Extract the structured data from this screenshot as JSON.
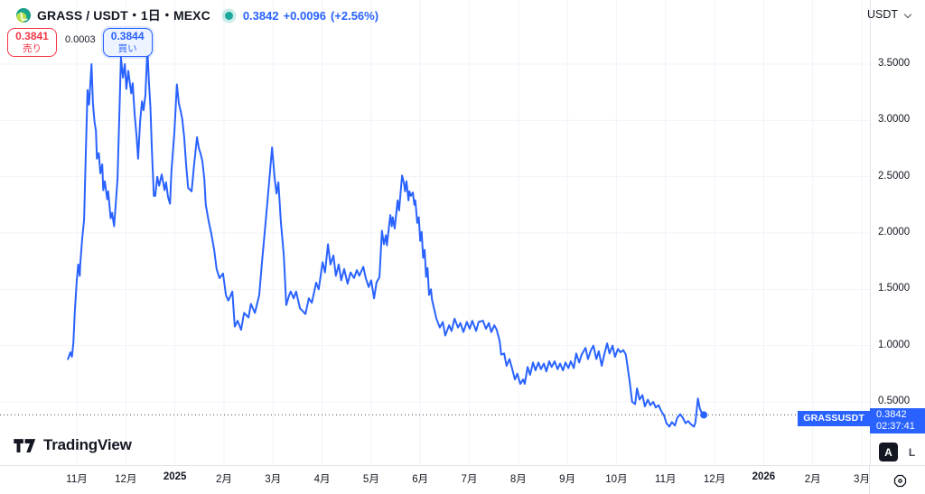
{
  "header": {
    "symbol_title": "GRASS / USDT・1日・MEXC",
    "last_price": "0.3842",
    "change_abs": "+0.0096",
    "change_pct": "(+2.56%)"
  },
  "trade_panel": {
    "sell_price": "0.3841",
    "sell_label": "売り",
    "spread": "0.0003",
    "buy_price": "0.3844",
    "buy_label": "買い"
  },
  "currency_selector": {
    "value": "USDT"
  },
  "price_label": {
    "symbol": "GRASSUSDT",
    "price": "0.3842",
    "countdown": "02:37:41"
  },
  "scale_buttons": {
    "auto": "A",
    "log": "L"
  },
  "footer": {
    "logo_text": "TradingView"
  },
  "colors": {
    "accent_blue": "#2962FF",
    "sell_red": "#F23645",
    "status_teal": "#1CA99B",
    "text_dark": "#131722",
    "grid": "#F0F3FA",
    "axis_border": "#E0E3EB",
    "price_line_dotted": "#4A4E59"
  },
  "chart_data": {
    "type": "line",
    "title": "GRASS/USDT 1D price, MEXC",
    "x_unit": "months_since_2024-11-01",
    "grid": true,
    "visible_price_range": [
      0.0,
      3.83
    ],
    "current_price": 0.3842,
    "y_ticks": [
      {
        "value": 3.5,
        "label": "3.5000"
      },
      {
        "value": 3.0,
        "label": "3.0000"
      },
      {
        "value": 2.5,
        "label": "2.5000"
      },
      {
        "value": 2.0,
        "label": "2.0000"
      },
      {
        "value": 1.5,
        "label": "1.5000"
      },
      {
        "value": 1.0,
        "label": "1.0000"
      },
      {
        "value": 0.5,
        "label": "0.5000"
      }
    ],
    "x_ticks": [
      {
        "m": 0,
        "label": "11月"
      },
      {
        "m": 1,
        "label": "12月"
      },
      {
        "m": 2,
        "label": "2025",
        "bold": true
      },
      {
        "m": 3,
        "label": "2月"
      },
      {
        "m": 4,
        "label": "3月"
      },
      {
        "m": 5,
        "label": "4月"
      },
      {
        "m": 6,
        "label": "5月"
      },
      {
        "m": 7,
        "label": "6月"
      },
      {
        "m": 8,
        "label": "7月"
      },
      {
        "m": 9,
        "label": "8月"
      },
      {
        "m": 10,
        "label": "9月"
      },
      {
        "m": 11,
        "label": "10月"
      },
      {
        "m": 12,
        "label": "11月"
      },
      {
        "m": 13,
        "label": "12月"
      },
      {
        "m": 14,
        "label": "2026",
        "bold": true
      },
      {
        "m": 15,
        "label": "2月"
      },
      {
        "m": 16,
        "label": "3月"
      }
    ],
    "series": [
      {
        "name": "GRASSUSDT",
        "color": "#2962FF",
        "points": [
          [
            -0.18,
            0.88
          ],
          [
            -0.13,
            0.94
          ],
          [
            -0.1,
            0.9
          ],
          [
            -0.07,
            1.02
          ],
          [
            -0.04,
            1.3
          ],
          [
            0,
            1.58
          ],
          [
            0.03,
            1.72
          ],
          [
            0.06,
            1.62
          ],
          [
            0.07,
            1.72
          ],
          [
            0.11,
            1.95
          ],
          [
            0.15,
            2.12
          ],
          [
            0.18,
            2.65
          ],
          [
            0.22,
            3.27
          ],
          [
            0.25,
            3.14
          ],
          [
            0.3,
            3.5
          ],
          [
            0.33,
            3.15
          ],
          [
            0.36,
            2.99
          ],
          [
            0.39,
            2.91
          ],
          [
            0.41,
            2.66
          ],
          [
            0.45,
            2.71
          ],
          [
            0.48,
            2.53
          ],
          [
            0.52,
            2.61
          ],
          [
            0.54,
            2.38
          ],
          [
            0.57,
            2.46
          ],
          [
            0.62,
            2.3
          ],
          [
            0.64,
            2.37
          ],
          [
            0.69,
            2.13
          ],
          [
            0.72,
            2.18
          ],
          [
            0.76,
            2.06
          ],
          [
            0.8,
            2.29
          ],
          [
            0.83,
            2.48
          ],
          [
            0.87,
            3.1
          ],
          [
            0.9,
            3.56
          ],
          [
            0.94,
            3.38
          ],
          [
            0.98,
            3.5
          ],
          [
            1.01,
            3.28
          ],
          [
            1.05,
            3.44
          ],
          [
            1.11,
            3.24
          ],
          [
            1.14,
            3.33
          ],
          [
            1.18,
            3.05
          ],
          [
            1.22,
            2.85
          ],
          [
            1.25,
            2.66
          ],
          [
            1.29,
            2.99
          ],
          [
            1.33,
            3.17
          ],
          [
            1.36,
            3.09
          ],
          [
            1.4,
            3.23
          ],
          [
            1.44,
            3.64
          ],
          [
            1.47,
            3.35
          ],
          [
            1.5,
            3.12
          ],
          [
            1.53,
            2.75
          ],
          [
            1.57,
            2.33
          ],
          [
            1.6,
            2.33
          ],
          [
            1.64,
            2.5
          ],
          [
            1.68,
            2.42
          ],
          [
            1.73,
            2.52
          ],
          [
            1.79,
            2.38
          ],
          [
            1.82,
            2.45
          ],
          [
            1.86,
            2.32
          ],
          [
            1.9,
            2.26
          ],
          [
            1.93,
            2.55
          ],
          [
            1.99,
            2.9
          ],
          [
            2.04,
            3.32
          ],
          [
            2.08,
            3.15
          ],
          [
            2.12,
            3.08
          ],
          [
            2.15,
            3.01
          ],
          [
            2.19,
            2.85
          ],
          [
            2.23,
            2.6
          ],
          [
            2.27,
            2.4
          ],
          [
            2.34,
            2.37
          ],
          [
            2.39,
            2.6
          ],
          [
            2.45,
            2.85
          ],
          [
            2.49,
            2.75
          ],
          [
            2.52,
            2.71
          ],
          [
            2.56,
            2.64
          ],
          [
            2.6,
            2.48
          ],
          [
            2.63,
            2.25
          ],
          [
            2.69,
            2.1
          ],
          [
            2.74,
            2.0
          ],
          [
            2.8,
            1.85
          ],
          [
            2.85,
            1.68
          ],
          [
            2.91,
            1.6
          ],
          [
            2.98,
            1.64
          ],
          [
            3.04,
            1.45
          ],
          [
            3.09,
            1.4
          ],
          [
            3.17,
            1.48
          ],
          [
            3.22,
            1.17
          ],
          [
            3.28,
            1.22
          ],
          [
            3.35,
            1.14
          ],
          [
            3.41,
            1.29
          ],
          [
            3.5,
            1.25
          ],
          [
            3.55,
            1.37
          ],
          [
            3.63,
            1.29
          ],
          [
            3.72,
            1.45
          ],
          [
            3.77,
            1.72
          ],
          [
            3.85,
            2.1
          ],
          [
            3.92,
            2.45
          ],
          [
            3.98,
            2.76
          ],
          [
            4.03,
            2.5
          ],
          [
            4.07,
            2.35
          ],
          [
            4.11,
            2.45
          ],
          [
            4.16,
            2.1
          ],
          [
            4.22,
            1.8
          ],
          [
            4.27,
            1.36
          ],
          [
            4.33,
            1.45
          ],
          [
            4.36,
            1.48
          ],
          [
            4.42,
            1.42
          ],
          [
            4.47,
            1.48
          ],
          [
            4.55,
            1.33
          ],
          [
            4.6,
            1.31
          ],
          [
            4.66,
            1.28
          ],
          [
            4.73,
            1.42
          ],
          [
            4.79,
            1.38
          ],
          [
            4.88,
            1.56
          ],
          [
            4.93,
            1.5
          ],
          [
            5.01,
            1.74
          ],
          [
            5.06,
            1.65
          ],
          [
            5.12,
            1.9
          ],
          [
            5.17,
            1.72
          ],
          [
            5.23,
            1.8
          ],
          [
            5.28,
            1.62
          ],
          [
            5.34,
            1.72
          ],
          [
            5.39,
            1.58
          ],
          [
            5.45,
            1.68
          ],
          [
            5.52,
            1.55
          ],
          [
            5.58,
            1.65
          ],
          [
            5.65,
            1.6
          ],
          [
            5.71,
            1.67
          ],
          [
            5.76,
            1.62
          ],
          [
            5.84,
            1.7
          ],
          [
            5.89,
            1.6
          ],
          [
            5.95,
            1.52
          ],
          [
            6.0,
            1.58
          ],
          [
            6.06,
            1.42
          ],
          [
            6.11,
            1.56
          ],
          [
            6.17,
            1.61
          ],
          [
            6.22,
            2.02
          ],
          [
            6.26,
            1.9
          ],
          [
            6.3,
            1.98
          ],
          [
            6.32,
            1.89
          ],
          [
            6.39,
            2.16
          ],
          [
            6.42,
            2.06
          ],
          [
            6.44,
            2.14
          ],
          [
            6.48,
            2.04
          ],
          [
            6.54,
            2.29
          ],
          [
            6.57,
            2.2
          ],
          [
            6.63,
            2.51
          ],
          [
            6.67,
            2.44
          ],
          [
            6.69,
            2.37
          ],
          [
            6.72,
            2.46
          ],
          [
            6.76,
            2.29
          ],
          [
            6.78,
            2.37
          ],
          [
            6.81,
            2.33
          ],
          [
            6.85,
            2.36
          ],
          [
            6.88,
            2.25
          ],
          [
            6.9,
            2.29
          ],
          [
            6.94,
            2.09
          ],
          [
            6.97,
            2.14
          ],
          [
            7.0,
            1.93
          ],
          [
            7.03,
            2.01
          ],
          [
            7.06,
            1.78
          ],
          [
            7.09,
            1.85
          ],
          [
            7.12,
            1.61
          ],
          [
            7.15,
            1.69
          ],
          [
            7.18,
            1.45
          ],
          [
            7.22,
            1.5
          ],
          [
            7.24,
            1.41
          ],
          [
            7.33,
            1.24
          ],
          [
            7.4,
            1.16
          ],
          [
            7.46,
            1.21
          ],
          [
            7.51,
            1.09
          ],
          [
            7.59,
            1.18
          ],
          [
            7.64,
            1.13
          ],
          [
            7.7,
            1.24
          ],
          [
            7.77,
            1.16
          ],
          [
            7.82,
            1.2
          ],
          [
            7.88,
            1.12
          ],
          [
            7.95,
            1.21
          ],
          [
            8.01,
            1.15
          ],
          [
            8.06,
            1.22
          ],
          [
            8.14,
            1.13
          ],
          [
            8.19,
            1.21
          ],
          [
            8.28,
            1.22
          ],
          [
            8.34,
            1.15
          ],
          [
            8.4,
            1.2
          ],
          [
            8.45,
            1.12
          ],
          [
            8.51,
            1.18
          ],
          [
            8.56,
            1.14
          ],
          [
            8.62,
            1.04
          ],
          [
            8.65,
            0.92
          ],
          [
            8.71,
            0.93
          ],
          [
            8.76,
            0.82
          ],
          [
            8.82,
            0.88
          ],
          [
            8.87,
            0.8
          ],
          [
            8.93,
            0.7
          ],
          [
            8.98,
            0.75
          ],
          [
            9.04,
            0.66
          ],
          [
            9.1,
            0.7
          ],
          [
            9.13,
            0.66
          ],
          [
            9.19,
            0.81
          ],
          [
            9.24,
            0.74
          ],
          [
            9.3,
            0.85
          ],
          [
            9.35,
            0.78
          ],
          [
            9.41,
            0.85
          ],
          [
            9.46,
            0.79
          ],
          [
            9.52,
            0.84
          ],
          [
            9.57,
            0.77
          ],
          [
            9.63,
            0.86
          ],
          [
            9.68,
            0.81
          ],
          [
            9.74,
            0.86
          ],
          [
            9.8,
            0.79
          ],
          [
            9.85,
            0.84
          ],
          [
            9.91,
            0.78
          ],
          [
            9.96,
            0.85
          ],
          [
            10.02,
            0.8
          ],
          [
            10.07,
            0.86
          ],
          [
            10.13,
            0.8
          ],
          [
            10.18,
            0.93
          ],
          [
            10.24,
            0.85
          ],
          [
            10.29,
            0.92
          ],
          [
            10.37,
            0.98
          ],
          [
            10.42,
            0.88
          ],
          [
            10.48,
            0.96
          ],
          [
            10.53,
            1.0
          ],
          [
            10.59,
            0.88
          ],
          [
            10.64,
            0.95
          ],
          [
            10.7,
            0.82
          ],
          [
            10.75,
            0.92
          ],
          [
            10.81,
            1.02
          ],
          [
            10.86,
            0.93
          ],
          [
            10.92,
            1.0
          ],
          [
            10.97,
            0.9
          ],
          [
            11.03,
            0.97
          ],
          [
            11.08,
            0.94
          ],
          [
            11.14,
            0.96
          ],
          [
            11.19,
            0.92
          ],
          [
            11.27,
            0.68
          ],
          [
            11.32,
            0.5
          ],
          [
            11.38,
            0.48
          ],
          [
            11.42,
            0.62
          ],
          [
            11.47,
            0.52
          ],
          [
            11.53,
            0.56
          ],
          [
            11.58,
            0.46
          ],
          [
            11.64,
            0.52
          ],
          [
            11.69,
            0.47
          ],
          [
            11.75,
            0.5
          ],
          [
            11.8,
            0.45
          ],
          [
            11.86,
            0.47
          ],
          [
            11.91,
            0.42
          ],
          [
            11.97,
            0.38
          ],
          [
            12.02,
            0.31
          ],
          [
            12.08,
            0.28
          ],
          [
            12.13,
            0.32
          ],
          [
            12.19,
            0.29
          ],
          [
            12.24,
            0.36
          ],
          [
            12.3,
            0.39
          ],
          [
            12.35,
            0.36
          ],
          [
            12.41,
            0.31
          ],
          [
            12.46,
            0.33
          ],
          [
            12.52,
            0.3
          ],
          [
            12.58,
            0.28
          ],
          [
            12.61,
            0.32
          ],
          [
            12.66,
            0.53
          ],
          [
            12.7,
            0.44
          ],
          [
            12.73,
            0.41
          ],
          [
            12.78,
            0.3842
          ]
        ]
      }
    ]
  }
}
